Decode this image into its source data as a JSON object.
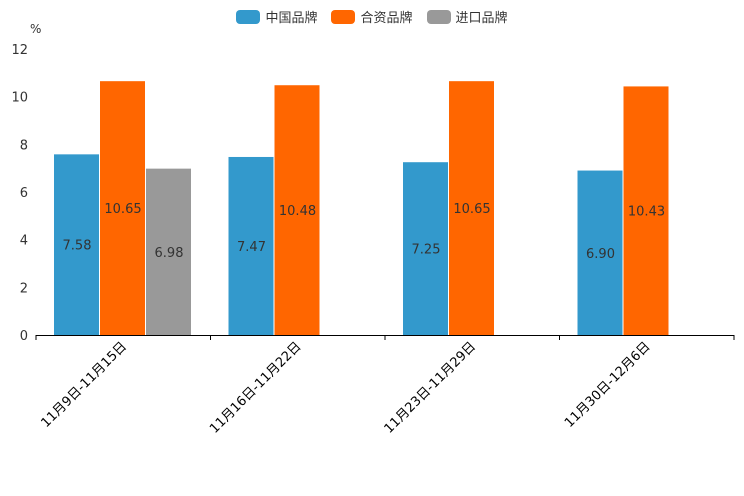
{
  "chart_data": {
    "type": "bar",
    "unit": "%",
    "categories": [
      "11月9日-11月15日",
      "11月16日-11月22日",
      "11月23日-11月29日",
      "11月30日-12月6日"
    ],
    "series": [
      {
        "name": "中国品牌",
        "color": "#3399CC",
        "values": [
          7.58,
          7.47,
          7.25,
          6.9
        ],
        "labels": [
          "7.58",
          "7.47",
          "7.25",
          "6.90"
        ]
      },
      {
        "name": "合资品牌",
        "color": "#FF6600",
        "values": [
          10.65,
          10.48,
          10.65,
          10.43
        ],
        "labels": [
          "10.65",
          "10.48",
          "10.65",
          "10.43"
        ]
      },
      {
        "name": "进口品牌",
        "color": "#999999",
        "values": [
          6.98,
          null,
          null,
          null
        ],
        "labels": [
          "6.98",
          "",
          "",
          ""
        ]
      }
    ],
    "ylim": [
      0,
      12
    ],
    "yticks": [
      "0",
      "2",
      "4",
      "6",
      "8",
      "10",
      "12"
    ],
    "legend_position": "top-center"
  }
}
